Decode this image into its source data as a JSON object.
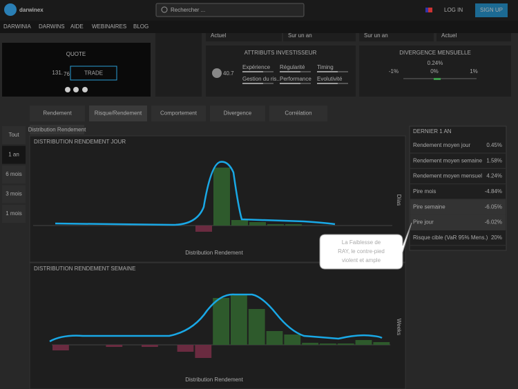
{
  "header": {
    "logo": "darwinex",
    "search_placeholder": "Rechercher ...",
    "login": "LOG IN",
    "signup": "SIGN UP"
  },
  "nav": [
    "DARWINIA",
    "DARWINS",
    "AIDE",
    "WEBINAIRES",
    "BLOG"
  ],
  "top_labels": [
    "Actuel",
    "Sur un an",
    "Sur un an",
    "Actuel"
  ],
  "quote": {
    "title": "QUOTE",
    "integer": "131.",
    "decimals": "76",
    "button": "TRADE"
  },
  "attributes": {
    "title": "ATTRIBUTS INVESTISSEUR",
    "score": "40.7",
    "items": [
      "Expérience",
      "Régularité",
      "Timing",
      "Gestion du ris...",
      "Performance",
      "Evolutivité"
    ]
  },
  "divergence": {
    "title": "DIVERGENCE MENSUELLE",
    "value": "0.24%",
    "scale": [
      "-1%",
      "0%",
      "1%"
    ]
  },
  "tabs": [
    "Rendement",
    "Risque/Rendement",
    "Comportement",
    "Divergence",
    "Corrélation"
  ],
  "periods": [
    "Tout",
    "1 an",
    "6 mois",
    "3 mois",
    "1 mois"
  ],
  "subtab": "Distribution Rendement",
  "histograms": [
    {
      "title": "DISTRIBUTION RENDEMENT JOUR",
      "y_label": "Días",
      "x_label": "Distribution Rendement",
      "values": [
        0,
        0,
        0,
        0,
        0,
        0,
        0,
        0,
        0,
        -9,
        84,
        8,
        5,
        2,
        2,
        0,
        0,
        0,
        0,
        0
      ],
      "ylim": [
        -20,
        100
      ],
      "positive_color": "#2e5a2c",
      "negative_color": "#6a2b40"
    },
    {
      "title": "DISTRIBUTION RENDEMENT SEMAINE",
      "y_label": "Weeks",
      "x_label": "Distribution Rendement",
      "values": [
        -8,
        0,
        0,
        -3,
        0,
        -3,
        0,
        -10,
        -19,
        68,
        74,
        52,
        20,
        15,
        3,
        2,
        2,
        7,
        4
      ],
      "ylim": [
        -20,
        100
      ],
      "positive_color": "#2e5a2c",
      "negative_color": "#6a2b40"
    }
  ],
  "stats": {
    "title": "DERNIER 1 AN",
    "rows": [
      {
        "label": "Rendement moyen jour",
        "value": "0.45%",
        "highlight": false
      },
      {
        "label": "Rendement moyen semaine",
        "value": "1.58%",
        "highlight": false
      },
      {
        "label": "Rendement moyen mensuel",
        "value": "4.24%",
        "highlight": false
      },
      {
        "label": "Pire mois",
        "value": "-4.84%",
        "highlight": false
      },
      {
        "label": "Pire semaine",
        "value": "-6.05%",
        "highlight": true
      },
      {
        "label": "Pire jour",
        "value": "-6.02%",
        "highlight": true
      },
      {
        "label": "Risque cible (VaR 95% Mens.)",
        "value": "20%",
        "highlight": false
      }
    ]
  },
  "callout": [
    "La Faiblesse de",
    "RAY, le contre-pied",
    "violent et ample"
  ]
}
